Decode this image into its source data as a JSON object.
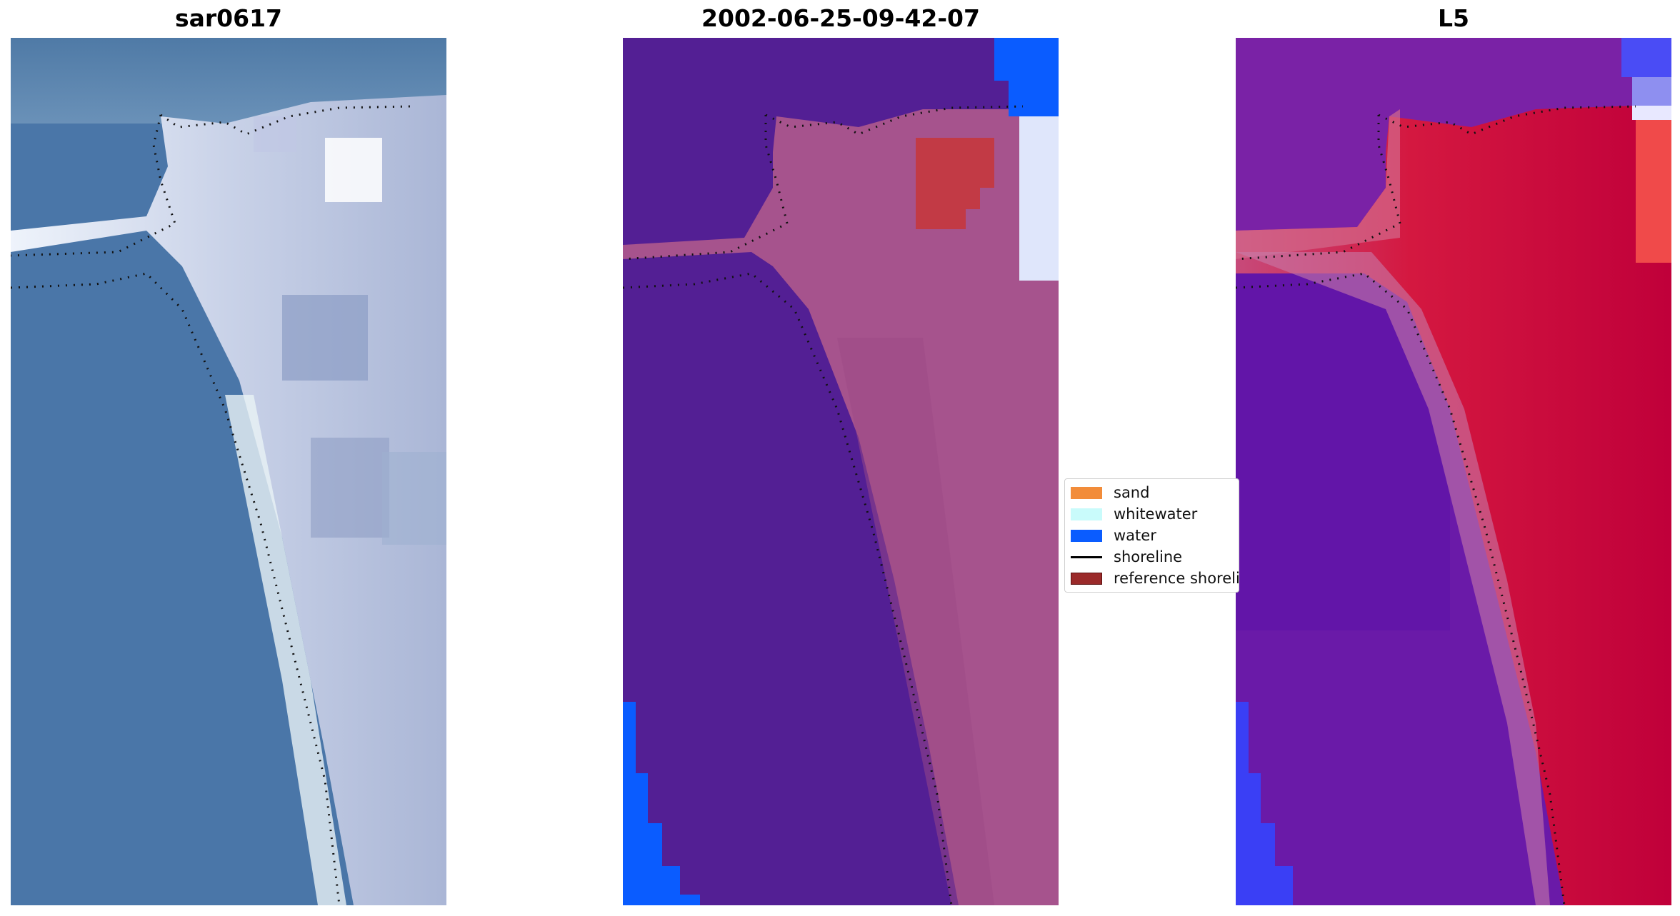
{
  "panels": [
    {
      "title": "sar0617"
    },
    {
      "title": "2002-06-25-09-42-07"
    },
    {
      "title": "L5"
    }
  ],
  "legend": {
    "items": [
      {
        "label": "sand",
        "color": "#f28c3a",
        "kind": "patch"
      },
      {
        "label": "whitewater",
        "color": "#c9fbfb",
        "kind": "patch"
      },
      {
        "label": "water",
        "color": "#0a5cff",
        "kind": "patch"
      },
      {
        "label": "shoreline",
        "color": "#000000",
        "kind": "line"
      },
      {
        "label": "reference shoreli",
        "color": "#9b2a2a",
        "kind": "patch"
      }
    ]
  },
  "colors": {
    "rgb_water": "#4a78a8",
    "rgb_sand": "#d8dff0",
    "class_background": "#531f94",
    "class_sand_overlay": "#a6538d",
    "class_red_block": "#c23a45",
    "index_low": "#6a1aa8",
    "index_high": "#d0002d"
  }
}
